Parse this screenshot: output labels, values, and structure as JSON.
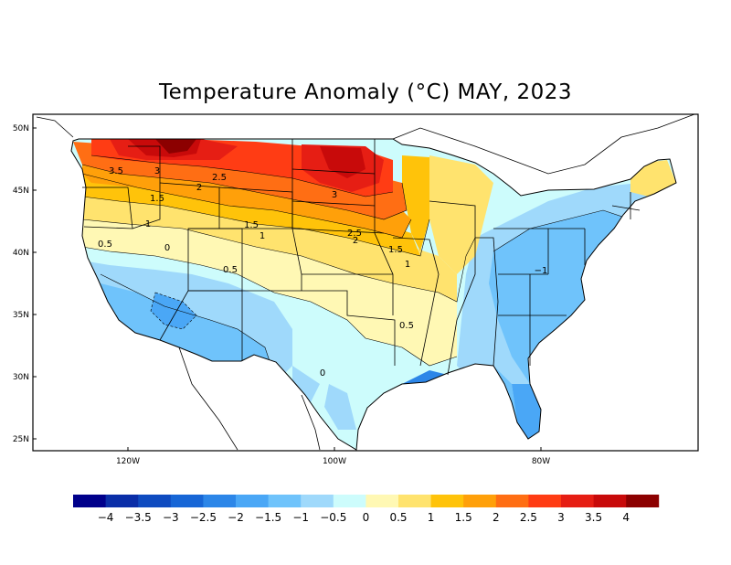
{
  "title": "Temperature Anomaly (°C) MAY, 2023",
  "latitude_labels": [
    "50N",
    "45N",
    "40N",
    "35N",
    "30N",
    "25N"
  ],
  "longitude_labels": [
    "120W",
    "100W",
    "80W"
  ],
  "legend": {
    "colors": [
      "#00008b",
      "#0a2ea8",
      "#0f4bc0",
      "#1766d6",
      "#2c86e8",
      "#4aa7f6",
      "#6fc3fb",
      "#9fd9fb",
      "#cdfcfc",
      "#fff8b4",
      "#ffe36e",
      "#ffc30a",
      "#ffa00a",
      "#ff6e14",
      "#ff3c14",
      "#e61e14",
      "#c80a0a",
      "#8c0000"
    ],
    "labels": [
      "−4",
      "−3.5",
      "−3",
      "−2.5",
      "−2",
      "−1.5",
      "−1",
      "−0.5",
      "0",
      "0.5",
      "1",
      "1.5",
      "2",
      "2.5",
      "3",
      "3.5",
      "4"
    ]
  },
  "contour_labels": [
    "3.5",
    "3",
    "2.5",
    "2",
    "1.5",
    "1",
    "0.5",
    "0",
    "1.5",
    "1",
    "0.5",
    "3",
    "2.5",
    "2",
    "1.5",
    "1",
    "0.5",
    "0",
    "−1"
  ]
}
